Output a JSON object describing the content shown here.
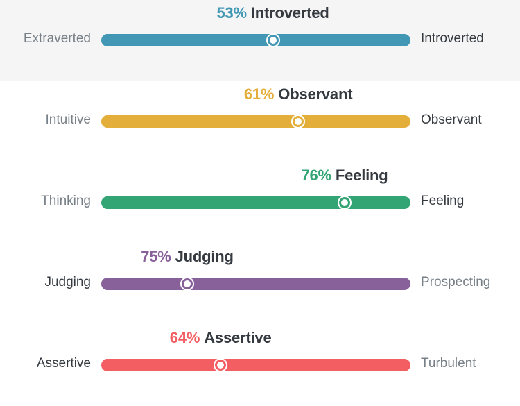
{
  "scales": [
    {
      "percent": "53%",
      "trait": "Introverted",
      "left_label": "Extraverted",
      "right_label": "Introverted",
      "dominant": "right",
      "position": 0.555,
      "color": "#4298b4",
      "highlighted": true
    },
    {
      "percent": "61%",
      "trait": "Observant",
      "left_label": "Intuitive",
      "right_label": "Observant",
      "dominant": "right",
      "position": 0.637,
      "color": "#e4ae3a",
      "highlighted": false
    },
    {
      "percent": "76%",
      "trait": "Feeling",
      "left_label": "Thinking",
      "right_label": "Feeling",
      "dominant": "right",
      "position": 0.787,
      "color": "#33a474",
      "highlighted": false
    },
    {
      "percent": "75%",
      "trait": "Judging",
      "left_label": "Judging",
      "right_label": "Prospecting",
      "dominant": "left",
      "position": 0.278,
      "color": "#88619a",
      "highlighted": false
    },
    {
      "percent": "64%",
      "trait": "Assertive",
      "left_label": "Assertive",
      "right_label": "Turbulent",
      "dominant": "left",
      "position": 0.386,
      "color": "#f25e62",
      "highlighted": false
    }
  ]
}
